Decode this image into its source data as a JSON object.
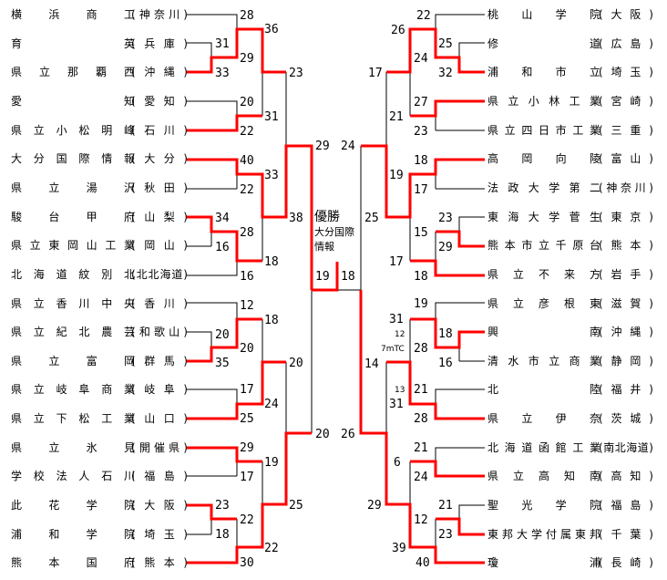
{
  "colors": {
    "winner_line": "#ff0000",
    "line": "#000000"
  },
  "left_teams": [
    {
      "school": "横浜商工",
      "pref": "(神奈川)"
    },
    {
      "school": "育英",
      "pref": "(兵庫)"
    },
    {
      "school": "県立那覇西",
      "pref": "(沖縄)"
    },
    {
      "school": "愛知",
      "pref": "(愛知)"
    },
    {
      "school": "県立小松明峰",
      "pref": "(石川)"
    },
    {
      "school": "大分国際情報",
      "pref": "(大分)"
    },
    {
      "school": "県立湯沢",
      "pref": "(秋田)"
    },
    {
      "school": "駿台甲府",
      "pref": "(山梨)"
    },
    {
      "school": "県立東岡山工業",
      "pref": "(岡山)"
    },
    {
      "school": "北海道紋別北",
      "pref": "(北北海道)"
    },
    {
      "school": "県立香川中央",
      "pref": "(香川)"
    },
    {
      "school": "県立紀北農芸",
      "pref": "(和歌山)"
    },
    {
      "school": "県立富岡",
      "pref": "(群馬)"
    },
    {
      "school": "県立岐阜商業",
      "pref": "(岐阜)"
    },
    {
      "school": "県立下松工業",
      "pref": "(山口)"
    },
    {
      "school": "県立氷見",
      "pref": "(開催県)"
    },
    {
      "school": "学校法人石川",
      "pref": "(福島)"
    },
    {
      "school": "此花学院",
      "pref": "(大阪)"
    },
    {
      "school": "浦和学院",
      "pref": "(埼玉)"
    },
    {
      "school": "熊本国府",
      "pref": "(熊本)"
    }
  ],
  "right_teams": [
    {
      "school": "桃山学院",
      "pref": "(大阪)"
    },
    {
      "school": "修道",
      "pref": "(広島)"
    },
    {
      "school": "浦和市立",
      "pref": "(埼玉)"
    },
    {
      "school": "県立小林工業",
      "pref": "(宮崎)"
    },
    {
      "school": "県立四日市工業",
      "pref": "(三重)"
    },
    {
      "school": "高岡向陵",
      "pref": "(富山)"
    },
    {
      "school": "法政大学第二",
      "pref": "(神奈川)"
    },
    {
      "school": "東海大学菅生",
      "pref": "(東京)"
    },
    {
      "school": "熊本市立千原台",
      "pref": "(熊本)"
    },
    {
      "school": "県立不来方",
      "pref": "(岩手)"
    },
    {
      "school": "県立彦根東",
      "pref": "(滋賀)"
    },
    {
      "school": "興南",
      "pref": "(沖縄)"
    },
    {
      "school": "清水市立商業",
      "pref": "(静岡)"
    },
    {
      "school": "北陸",
      "pref": "(福井)"
    },
    {
      "school": "県立伊奈",
      "pref": "(茨城)"
    },
    {
      "school": "北海道函館工業",
      "pref": "(南北海道)"
    },
    {
      "school": "県立高知南",
      "pref": "(高知)"
    },
    {
      "school": "聖光学院",
      "pref": "(福島)"
    },
    {
      "school": "東邦大学付属東邦",
      "pref": "(千葉)"
    },
    {
      "school": "瓊浦",
      "pref": "(長崎)"
    }
  ],
  "left_scores": [
    "28",
    "36",
    "31",
    "29",
    "33",
    "23",
    "20",
    "31",
    "22",
    "40",
    "33",
    "22",
    "38",
    "34",
    "28",
    "16",
    "18",
    "16",
    "12",
    "18",
    "20",
    "20",
    "35",
    "20",
    "17",
    "24",
    "25",
    "29",
    "19",
    "17",
    "23",
    "25",
    "22",
    "18",
    "22",
    "30"
  ],
  "right_scores": [
    "22",
    "26",
    "25",
    "24",
    "32",
    "17",
    "27",
    "21",
    "23",
    "18",
    "19",
    "17",
    "25",
    "23",
    "15",
    "29",
    "17",
    "18",
    "19",
    "31",
    "18",
    "28",
    "14",
    "16",
    "21",
    "31",
    "28",
    "21",
    "6",
    "24",
    "29",
    "21",
    "12",
    "23",
    "39",
    "40"
  ],
  "right_notes": [
    "12",
    "7mTC",
    "13"
  ],
  "center": {
    "left_top": "29",
    "right_top": "24",
    "left_bottom": "19",
    "right_bottom": "18",
    "left_final": "20",
    "right_final": "26",
    "champion_label": "優勝",
    "champion_line1": "大分国際",
    "champion_line2": "情報"
  }
}
